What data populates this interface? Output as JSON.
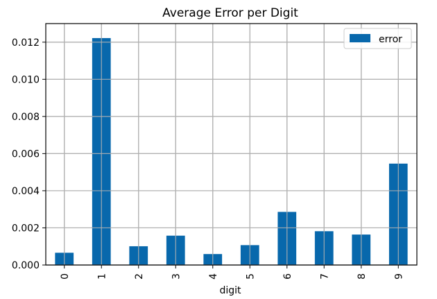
{
  "chart_data": {
    "type": "bar",
    "title": "Average Error per Digit",
    "xlabel": "digit",
    "ylabel": "",
    "categories": [
      "0",
      "1",
      "2",
      "3",
      "4",
      "5",
      "6",
      "7",
      "8",
      "9"
    ],
    "series": [
      {
        "name": "error",
        "color": "#0868ac",
        "values": [
          0.00066,
          0.01222,
          0.00101,
          0.00158,
          0.00059,
          0.00107,
          0.00286,
          0.00182,
          0.00164,
          0.00546
        ]
      }
    ],
    "ylim": [
      0,
      0.013
    ],
    "yticks": [
      "0.000",
      "0.002",
      "0.004",
      "0.006",
      "0.008",
      "0.010",
      "0.012"
    ],
    "ytick_values": [
      0,
      0.002,
      0.004,
      0.006,
      0.008,
      0.01,
      0.012
    ],
    "grid": true,
    "legend_position": "top-right",
    "xtick_rotation": "vertical"
  }
}
